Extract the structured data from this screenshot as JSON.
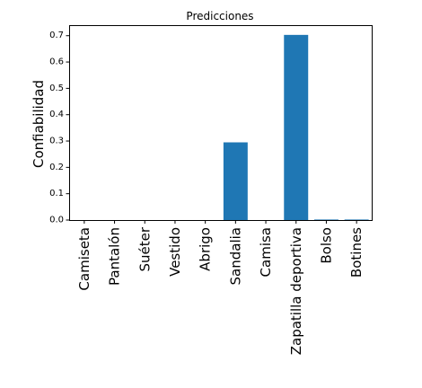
{
  "chart_data": {
    "type": "bar",
    "title": "Predicciones",
    "xlabel": "",
    "ylabel": "Confiabilidad",
    "categories": [
      "Camiseta",
      "Pantalón",
      "Suéter",
      "Vestido",
      "Abrigo",
      "Sandalia",
      "Camisa",
      "Zapatilla deportiva",
      "Bolso",
      "Botines"
    ],
    "values": [
      0.0,
      0.0,
      0.0,
      0.0,
      0.0,
      0.295,
      0.0,
      0.703,
      0.002,
      0.002
    ],
    "ylim": [
      0,
      0.74
    ],
    "yticks": [
      "0.0",
      "0.1",
      "0.2",
      "0.3",
      "0.4",
      "0.5",
      "0.6",
      "0.7"
    ],
    "grid": false,
    "bar_color": "#1f77b4"
  }
}
